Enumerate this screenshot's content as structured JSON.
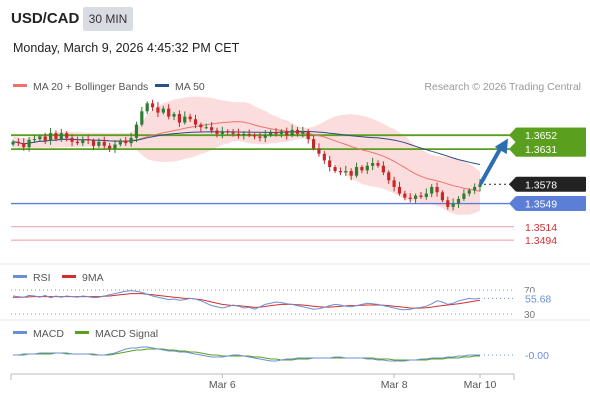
{
  "header": {
    "symbol": "USD/CAD",
    "timeframe": "30 MIN",
    "datetime": "Monday, March 9, 2026 4:45:32 PM CET"
  },
  "credit": "Research © 2026 Trading Central",
  "colors": {
    "up_candle": "#2e7d32",
    "down_candle": "#c62828",
    "ma20": "#f07070",
    "bollinger_fill": "#fbd5d5",
    "ma50": "#2b4f8a",
    "resistance": "#5aa01e",
    "support": "#5b7fd6",
    "target": "#e57373",
    "last_price": "#222222",
    "arrow": "#2f6db3",
    "rsi": "#6b8fd6",
    "rsi_ma": "#d32f2f",
    "macd": "#6b8fd6",
    "macd_signal": "#5aa01e"
  },
  "chart_data": [
    {
      "type": "candlestick",
      "legend": [
        {
          "name": "MA 20 + Bollinger Bands",
          "color": "#f07070"
        },
        {
          "name": "MA 50",
          "color": "#2b4f8a"
        }
      ],
      "x_ticks": [
        "Mar 6",
        "Mar 8",
        "Mar 10"
      ],
      "ylim": [
        1.347,
        1.3705
      ],
      "price_levels": [
        {
          "label": "1.3652",
          "value": 1.3652,
          "kind": "resistance"
        },
        {
          "label": "1.3631",
          "value": 1.3631,
          "kind": "resistance"
        },
        {
          "label": "1.3578",
          "value": 1.3578,
          "kind": "last"
        },
        {
          "label": "1.3549",
          "value": 1.3549,
          "kind": "support"
        },
        {
          "label": "1.3514",
          "value": 1.3514,
          "kind": "target"
        },
        {
          "label": "1.3494",
          "value": 1.3494,
          "kind": "target"
        }
      ],
      "forecast_arrow": {
        "from": 1.358,
        "to": 1.365
      },
      "close": [
        1.3642,
        1.364,
        1.3634,
        1.3645,
        1.3646,
        1.365,
        1.3644,
        1.3655,
        1.3646,
        1.3655,
        1.3648,
        1.3642,
        1.364,
        1.3646,
        1.3644,
        1.3636,
        1.3642,
        1.3636,
        1.3632,
        1.3638,
        1.3644,
        1.364,
        1.3648,
        1.3668,
        1.3688,
        1.37,
        1.3694,
        1.3686,
        1.3692,
        1.368,
        1.3684,
        1.3671,
        1.368,
        1.3676,
        1.3668,
        1.3664,
        1.3664,
        1.3659,
        1.3654,
        1.3658,
        1.3656,
        1.3654,
        1.3652,
        1.3654,
        1.3652,
        1.365,
        1.3648,
        1.3652,
        1.3656,
        1.3654,
        1.3658,
        1.3652,
        1.366,
        1.3654,
        1.3658,
        1.3646,
        1.3632,
        1.3624,
        1.3614,
        1.3604,
        1.3598,
        1.3596,
        1.3598,
        1.3591,
        1.3604,
        1.3599,
        1.3606,
        1.361,
        1.3606,
        1.3596,
        1.3584,
        1.3574,
        1.3564,
        1.3558,
        1.3556,
        1.3561,
        1.3559,
        1.3564,
        1.3574,
        1.3566,
        1.3554,
        1.3544,
        1.3549,
        1.3556,
        1.3564,
        1.3569,
        1.3574,
        1.3578
      ]
    },
    {
      "type": "line",
      "title": "RSI",
      "series": [
        {
          "name": "RSI",
          "color": "#6b8fd6"
        },
        {
          "name": "9MA",
          "color": "#d32f2f"
        }
      ],
      "levels": [
        70,
        30
      ],
      "last_value_label": "55.68",
      "ylim": [
        25,
        75
      ],
      "rsi": [
        60,
        59,
        58,
        61,
        60,
        58,
        61,
        57,
        60,
        58,
        60,
        59,
        58,
        60,
        59,
        57,
        58,
        60,
        62,
        64,
        66,
        68,
        69,
        68,
        66,
        63,
        60,
        58,
        56,
        54,
        55,
        53,
        54,
        56,
        55,
        52,
        48,
        44,
        42,
        40,
        42,
        45,
        43,
        40,
        41,
        38,
        42,
        46,
        48,
        50,
        49,
        47,
        46,
        44,
        42,
        40,
        38,
        39,
        41,
        44,
        46,
        45,
        43,
        42,
        44,
        46,
        48,
        47,
        46,
        44,
        42,
        40,
        38,
        37,
        38,
        40,
        41,
        43,
        47,
        52,
        50,
        46,
        48,
        52,
        54,
        56,
        55,
        56
      ],
      "rsi_ma": [
        58,
        58,
        58,
        58.5,
        59,
        59,
        59,
        59,
        59,
        59,
        59,
        59,
        59,
        59,
        59,
        59,
        59,
        59.5,
        60,
        61,
        62,
        63,
        64,
        64,
        64,
        63,
        62,
        61,
        60,
        59,
        58,
        57,
        56,
        56,
        55,
        54,
        52,
        50,
        48,
        46,
        45,
        44,
        44,
        43,
        42,
        41,
        41.5,
        42.5,
        44,
        45,
        46,
        46,
        46,
        45.5,
        45,
        44,
        43,
        42,
        41.5,
        41.5,
        42,
        43,
        43.5,
        44,
        44,
        44.5,
        45,
        45,
        45,
        44.5,
        44,
        43,
        42,
        41,
        40,
        39.5,
        40,
        40.5,
        41.5,
        43,
        44,
        45,
        46,
        47,
        48.5,
        50,
        51.5,
        53
      ]
    },
    {
      "type": "line",
      "title": "MACD",
      "series": [
        {
          "name": "MACD",
          "color": "#6b8fd6"
        },
        {
          "name": "MACD Signal",
          "color": "#5aa01e"
        }
      ],
      "last_value_label": "-0.00",
      "ylim": [
        -0.0015,
        0.0015
      ],
      "macd": [
        0.0,
        0.0,
        0.0001,
        0.0001,
        0.0001,
        0.0002,
        0.0002,
        0.0002,
        0.0002,
        0.0002,
        0.0001,
        0.0001,
        0.0001,
        0.0001,
        0.0001,
        0.0,
        0.0,
        0.0,
        0.0001,
        0.0002,
        0.0004,
        0.0006,
        0.0007,
        0.0007,
        0.0008,
        0.0008,
        0.0007,
        0.0006,
        0.0005,
        0.0004,
        0.0004,
        0.0003,
        0.0003,
        0.0002,
        0.0001,
        0.0,
        -0.0001,
        -0.0002,
        -0.0002,
        -0.0002,
        -0.0001,
        0.0,
        0.0,
        -0.0001,
        -0.0002,
        -0.0003,
        -0.0004,
        -0.0005,
        -0.0006,
        -0.0006,
        -0.0005,
        -0.0004,
        -0.0004,
        -0.0003,
        -0.0003,
        -0.0003,
        -0.0003,
        -0.0003,
        -0.0003,
        -0.0003,
        -0.0002,
        -0.0002,
        -0.0003,
        -0.0003,
        -0.0003,
        -0.0003,
        -0.0004,
        -0.0004,
        -0.0005,
        -0.0005,
        -0.0006,
        -0.0006,
        -0.0006,
        -0.0006,
        -0.0005,
        -0.0005,
        -0.0004,
        -0.0004,
        -0.0003,
        -0.0003,
        -0.0003,
        -0.0002,
        -0.0002,
        -0.0001,
        -0.0001,
        0.0,
        0.0,
        0.0
      ],
      "signal": [
        0.0,
        0.0,
        0.0,
        0.0001,
        0.0001,
        0.0001,
        0.0001,
        0.0001,
        0.0002,
        0.0002,
        0.0002,
        0.0001,
        0.0001,
        0.0001,
        0.0001,
        0.0001,
        0.0,
        0.0,
        0.0,
        0.0001,
        0.0002,
        0.0003,
        0.0004,
        0.0005,
        0.0005,
        0.0006,
        0.0006,
        0.0006,
        0.0006,
        0.0005,
        0.0005,
        0.0004,
        0.0004,
        0.0003,
        0.0003,
        0.0002,
        0.0001,
        0.0,
        0.0,
        -0.0001,
        -0.0001,
        -0.0001,
        -0.0001,
        -0.0001,
        -0.0001,
        -0.0002,
        -0.0002,
        -0.0003,
        -0.0004,
        -0.0004,
        -0.0005,
        -0.0005,
        -0.0005,
        -0.0004,
        -0.0004,
        -0.0004,
        -0.0003,
        -0.0003,
        -0.0003,
        -0.0003,
        -0.0003,
        -0.0003,
        -0.0003,
        -0.0003,
        -0.0003,
        -0.0003,
        -0.0003,
        -0.0003,
        -0.0004,
        -0.0004,
        -0.0004,
        -0.0005,
        -0.0005,
        -0.0005,
        -0.0005,
        -0.0005,
        -0.0005,
        -0.0005,
        -0.0004,
        -0.0004,
        -0.0004,
        -0.0003,
        -0.0003,
        -0.0003,
        -0.0002,
        -0.0002,
        -0.0001,
        -0.0001
      ]
    }
  ]
}
